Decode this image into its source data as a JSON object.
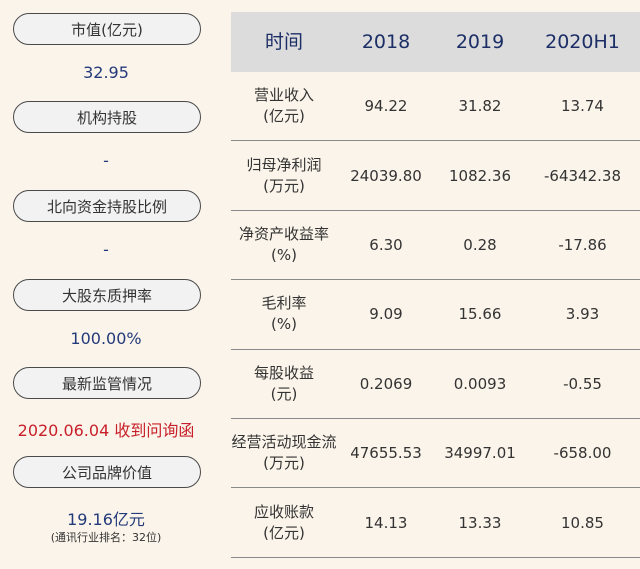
{
  "left_panel": {
    "items": [
      {
        "label": "市值(亿元)",
        "value": "32.95"
      },
      {
        "label": "机构持股",
        "value": "-"
      },
      {
        "label": "北向资金持股比例",
        "value": "-"
      },
      {
        "label": "大股东质押率",
        "value": "100.00%"
      },
      {
        "label": "最新监管情况",
        "value": "2020.06.04 收到问询函"
      },
      {
        "label": "公司品牌价值",
        "value": "19.16亿元",
        "note": "(通讯行业排名：32位)"
      }
    ],
    "colors": {
      "value_blue": "#233a7a",
      "alert_red": "#c8202a"
    }
  },
  "table": {
    "headers": [
      "时间",
      "2018",
      "2019",
      "2020H1"
    ],
    "rows": [
      {
        "label_line1": "营业收入",
        "label_line2": "(亿元)",
        "values": [
          "94.22",
          "31.82",
          "13.74"
        ]
      },
      {
        "label_line1": "归母净利润",
        "label_line2": "(万元)",
        "values": [
          "24039.80",
          "1082.36",
          "-64342.38"
        ]
      },
      {
        "label_line1": "净资产收益率",
        "label_line2": "(%)",
        "values": [
          "6.30",
          "0.28",
          "-17.86"
        ]
      },
      {
        "label_line1": "毛利率",
        "label_line2": "(%)",
        "values": [
          "9.09",
          "15.66",
          "3.93"
        ]
      },
      {
        "label_line1": "每股收益",
        "label_line2": "(元)",
        "values": [
          "0.2069",
          "0.0093",
          "-0.55"
        ]
      },
      {
        "label_line1": "经营活动现金流",
        "label_line2": "(万元)",
        "values": [
          "47655.53",
          "34997.01",
          "-658.00"
        ]
      },
      {
        "label_line1": "应收账款",
        "label_line2": "(亿元)",
        "values": [
          "14.13",
          "13.33",
          "10.85"
        ]
      }
    ]
  }
}
